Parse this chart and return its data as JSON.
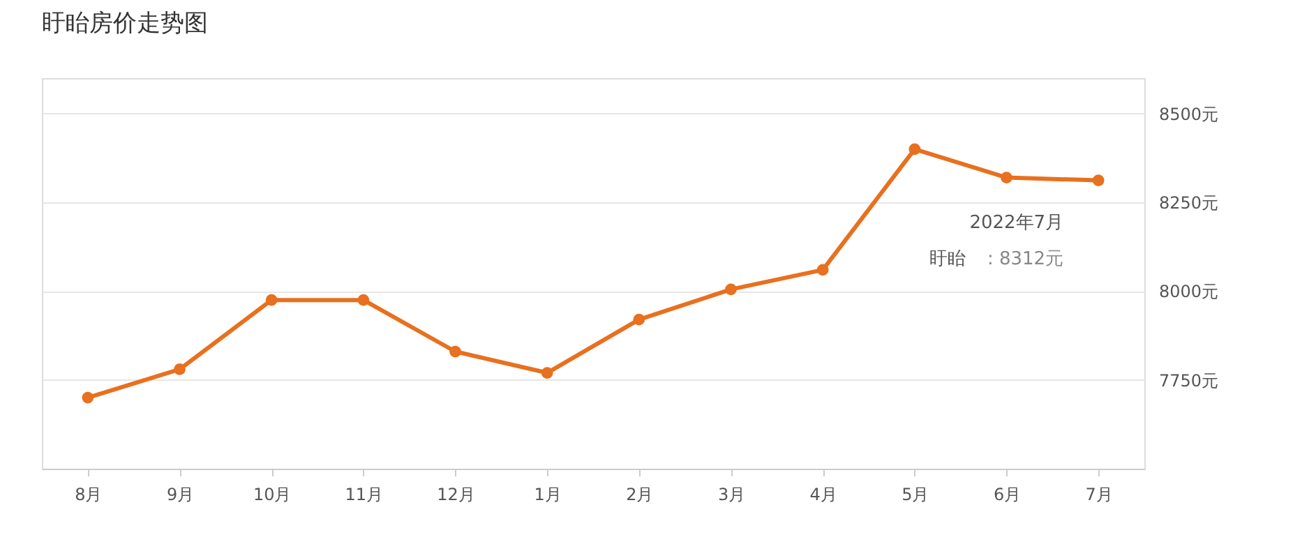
{
  "chart_data": {
    "type": "line",
    "title": "盱眙房价走势图",
    "categories": [
      "8月",
      "9月",
      "10月",
      "11月",
      "12月",
      "1月",
      "2月",
      "3月",
      "4月",
      "5月",
      "6月",
      "7月"
    ],
    "series": [
      {
        "name": "盱眙",
        "color": "#e8701e",
        "values": [
          7700,
          7780,
          7975,
          7975,
          7830,
          7770,
          7920,
          8005,
          8060,
          8400,
          8320,
          8312
        ]
      }
    ],
    "ylim": [
      7500,
      8600
    ],
    "yticks": [
      {
        "value": 7750,
        "label": "7750元"
      },
      {
        "value": 8000,
        "label": "8000元"
      },
      {
        "value": 8250,
        "label": "8250元"
      },
      {
        "value": 8500,
        "label": "8500元"
      }
    ],
    "grid": "y",
    "marker": "circle",
    "line_style": "solid",
    "legend": false,
    "annotations": [
      "2022年7月",
      ":  8312元"
    ]
  }
}
